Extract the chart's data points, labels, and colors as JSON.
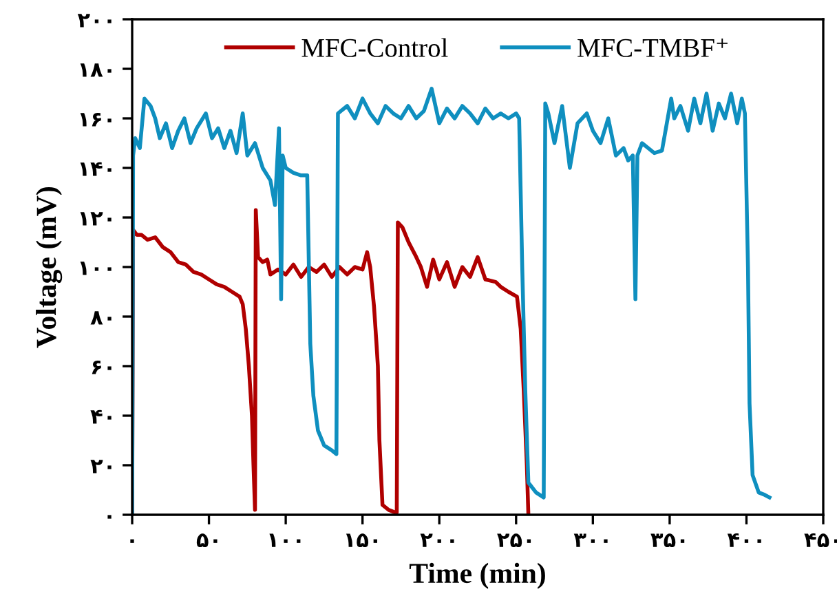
{
  "chart_data": {
    "type": "line",
    "xlabel": "Time (min)",
    "ylabel": "Voltage (mV)",
    "xlim": [
      0,
      450
    ],
    "ylim": [
      0,
      200
    ],
    "xticks": [
      {
        "value": 0,
        "label": "۰"
      },
      {
        "value": 50,
        "label": "۵۰"
      },
      {
        "value": 100,
        "label": "۱۰۰"
      },
      {
        "value": 150,
        "label": "۱۵۰"
      },
      {
        "value": 200,
        "label": "۲۰۰"
      },
      {
        "value": 250,
        "label": "۲۵۰"
      },
      {
        "value": 300,
        "label": "۳۰۰"
      },
      {
        "value": 350,
        "label": "۳۵۰"
      },
      {
        "value": 400,
        "label": "۴۰۰"
      },
      {
        "value": 450,
        "label": "۴۵۰"
      }
    ],
    "yticks": [
      {
        "value": 0,
        "label": "۰"
      },
      {
        "value": 20,
        "label": "۲۰"
      },
      {
        "value": 40,
        "label": "۴۰"
      },
      {
        "value": 60,
        "label": "۶۰"
      },
      {
        "value": 80,
        "label": "۸۰"
      },
      {
        "value": 100,
        "label": "۱۰۰"
      },
      {
        "value": 120,
        "label": "۱۲۰"
      },
      {
        "value": 140,
        "label": "۱۴۰"
      },
      {
        "value": 160,
        "label": "۱۶۰"
      },
      {
        "value": 180,
        "label": "۱۸۰"
      },
      {
        "value": 200,
        "label": "۲۰۰"
      }
    ],
    "grid": false,
    "legend": "top",
    "marker": "none",
    "line_style": "solid",
    "series": [
      {
        "name": "MFC-Control",
        "color": "#b00000",
        "x": [
          0,
          0.6,
          3,
          6,
          10,
          15,
          20,
          25,
          30,
          35,
          40,
          45,
          50,
          55,
          60,
          65,
          70,
          72,
          74,
          76,
          78,
          79,
          80,
          80.5,
          82,
          85,
          88,
          90,
          95,
          100,
          105,
          110,
          115,
          120,
          125,
          130,
          135,
          140,
          145,
          150,
          153,
          155,
          157.5,
          159,
          160,
          161,
          163,
          167,
          171,
          172.3,
          173,
          176,
          180,
          185,
          188,
          192,
          196,
          200,
          205,
          210,
          215,
          220,
          225,
          230,
          236.6,
          240,
          245,
          250.6,
          253,
          255,
          257,
          258
        ],
        "values": [
          0,
          115,
          113,
          113,
          111,
          112,
          108,
          106,
          102,
          101,
          98,
          97,
          95,
          93,
          92,
          90,
          88,
          85,
          75,
          60,
          40,
          20,
          2,
          123,
          104,
          102,
          103,
          97,
          99,
          97,
          101,
          96,
          100,
          98,
          101,
          96,
          100,
          97,
          100,
          99,
          106,
          100,
          84,
          70,
          60,
          30,
          4,
          2,
          1,
          1,
          118,
          116,
          110,
          104,
          100,
          92,
          103,
          95,
          102,
          92,
          100,
          96,
          104,
          95,
          94,
          92,
          90,
          88,
          75,
          50,
          20,
          0
        ]
      },
      {
        "name": "MFC-TMBF⁺",
        "color": "#0f8fbf",
        "x": [
          0,
          0.6,
          2,
          5,
          8,
          12,
          15,
          18,
          22,
          26,
          30,
          34,
          38,
          42,
          48,
          52,
          56,
          60,
          64,
          68,
          72,
          75,
          80,
          85,
          90,
          93,
          95.6,
          97,
          98,
          100,
          105,
          110,
          114,
          116,
          118,
          121,
          125,
          130,
          133,
          134,
          136,
          140,
          145,
          150,
          155,
          160,
          165,
          170,
          175,
          180,
          185,
          190,
          195,
          200,
          205,
          210,
          215,
          220,
          225,
          230,
          235,
          240,
          245,
          250,
          252,
          254,
          256,
          258,
          263,
          268,
          269,
          271,
          275,
          280,
          285,
          290,
          296,
          300,
          305,
          310,
          315,
          320,
          323,
          326,
          327.7,
          329,
          332,
          336,
          340,
          345,
          351,
          353,
          357,
          362,
          366,
          370,
          374,
          378,
          382,
          386,
          390,
          394,
          397,
          399,
          401,
          402,
          404,
          408,
          412,
          415
        ],
        "values": [
          0,
          145,
          152,
          148,
          168,
          165,
          160,
          152,
          158,
          148,
          155,
          160,
          150,
          156,
          162,
          152,
          156,
          148,
          155,
          146,
          162,
          145,
          150,
          140,
          135,
          125,
          156,
          87,
          145,
          140,
          138,
          137,
          137,
          69,
          48,
          34,
          28,
          26,
          24.5,
          162,
          163,
          165,
          160,
          168,
          162,
          158,
          165,
          162,
          160,
          165,
          160,
          163,
          172,
          158,
          164,
          160,
          165,
          162,
          158,
          164,
          160,
          162,
          160,
          162,
          160,
          100,
          50,
          13,
          9,
          7,
          166,
          162,
          150,
          165,
          140,
          158,
          162,
          155,
          150,
          160,
          145,
          148,
          143,
          145,
          87,
          145,
          150,
          148,
          146,
          147,
          168,
          160,
          165,
          155,
          168,
          158,
          170,
          155,
          166,
          160,
          170,
          158,
          168,
          162,
          100,
          45,
          16,
          9,
          8,
          7
        ]
      }
    ]
  }
}
